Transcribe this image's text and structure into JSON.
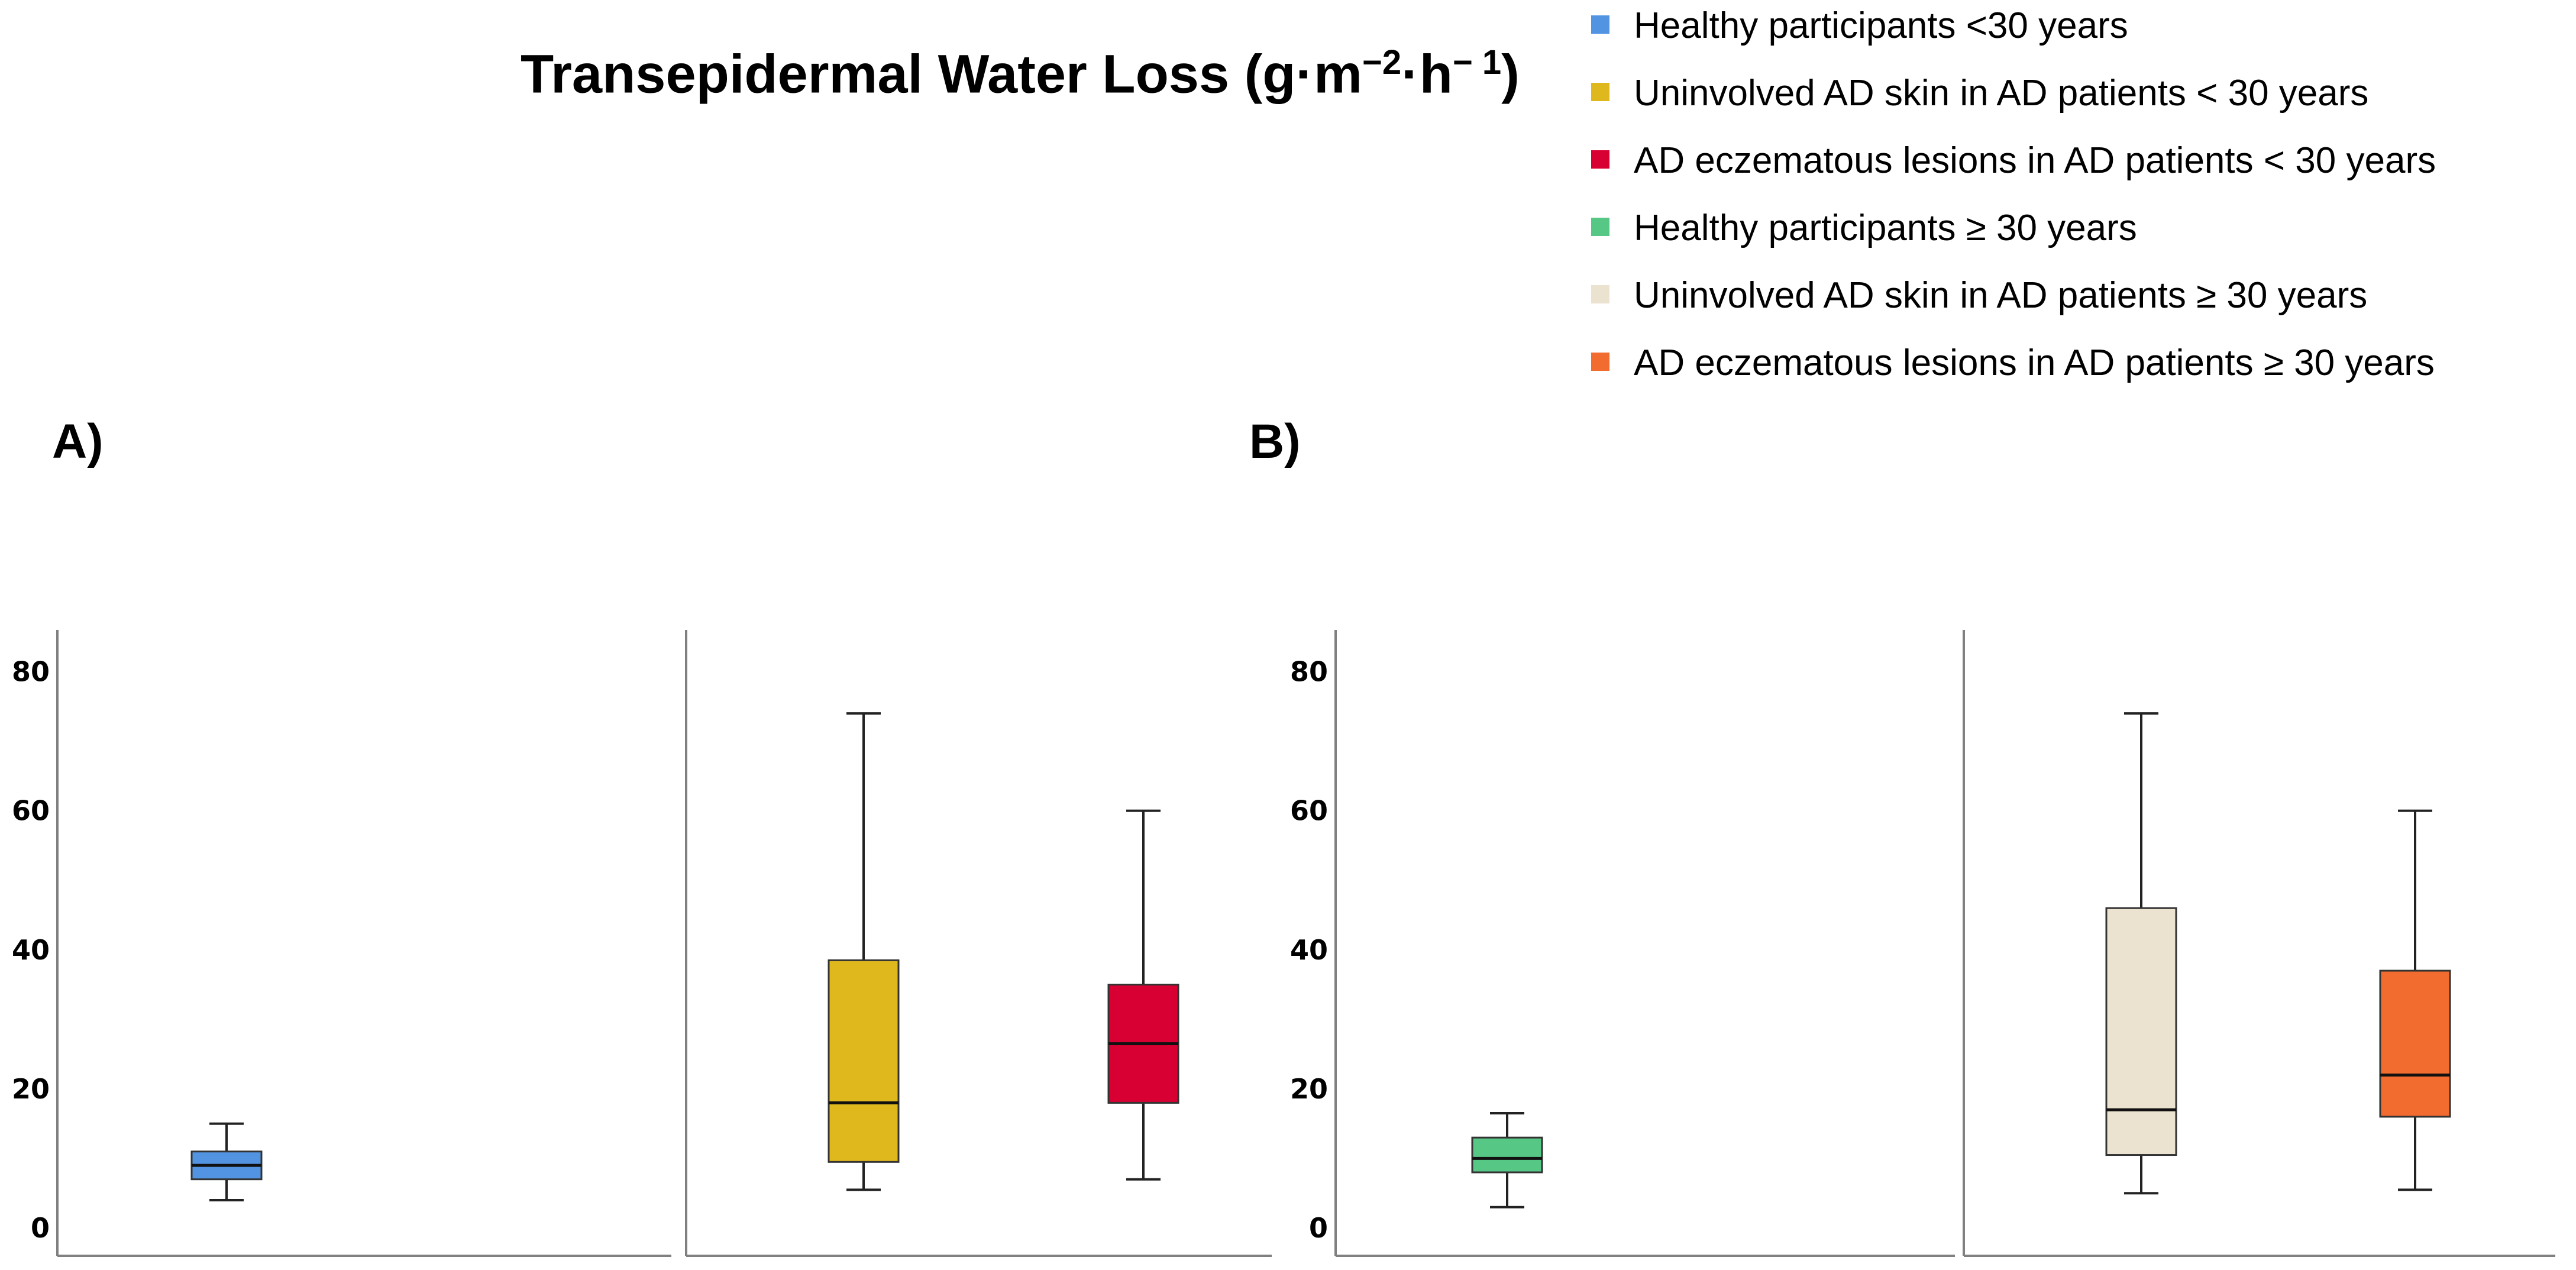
{
  "title": {
    "main": "Transepidermal Water Loss (g·m",
    "exp1": "−2",
    "middle": "·h",
    "exp2": "− 1",
    "end": ")"
  },
  "legend": [
    {
      "label": "Healthy participants <30 years",
      "color": "#5294e2"
    },
    {
      "label": "Uninvolved AD skin in AD patients < 30 years",
      "color": "#dfb81d"
    },
    {
      "label": "AD eczematous lesions in AD patients < 30 years",
      "color": "#d80032"
    },
    {
      "label": "Healthy participants  ≥ 30 years",
      "color": "#57c785"
    },
    {
      "label": "Uninvolved AD skin in AD patients  ≥ 30 years",
      "color": "#ebe3cf"
    },
    {
      "label": "AD eczematous lesions in AD patients  ≥ 30 years",
      "color": "#f26b2f"
    }
  ],
  "panels": {
    "a": "A)",
    "b": "B)"
  },
  "chart_data": [
    {
      "type": "box",
      "panel": "A)",
      "ylim": [
        -4,
        86
      ],
      "yticks": [
        0,
        20,
        40,
        60,
        80
      ],
      "groups": [
        {
          "name": "Healthy participants <30 years",
          "color": "#5294e2",
          "min": 4,
          "q1": 7,
          "median": 9,
          "q3": 11,
          "max": 15
        },
        {
          "name": "Uninvolved AD skin in AD patients < 30 years",
          "color": "#dfb81d",
          "min": 5.5,
          "q1": 9.5,
          "median": 18,
          "q3": 38.5,
          "max": 74
        },
        {
          "name": "AD eczematous lesions in AD patients < 30 years",
          "color": "#d80032",
          "min": 7,
          "q1": 18,
          "median": 26.5,
          "q3": 35,
          "max": 60
        }
      ]
    },
    {
      "type": "box",
      "panel": "B)",
      "ylim": [
        -4,
        86
      ],
      "yticks": [
        0,
        20,
        40,
        60,
        80
      ],
      "groups": [
        {
          "name": "Healthy participants  ≥ 30 years",
          "color": "#57c785",
          "min": 3,
          "q1": 8,
          "median": 10,
          "q3": 13,
          "max": 16.5
        },
        {
          "name": "Uninvolved AD skin in AD patients  ≥ 30 years",
          "color": "#ebe3cf",
          "min": 5,
          "q1": 10.5,
          "median": 17,
          "q3": 46,
          "max": 74
        },
        {
          "name": "AD eczematous lesions in AD patients  ≥ 30 years",
          "color": "#f26b2f",
          "min": 5.5,
          "q1": 16,
          "median": 22,
          "q3": 37,
          "max": 60
        }
      ]
    }
  ]
}
